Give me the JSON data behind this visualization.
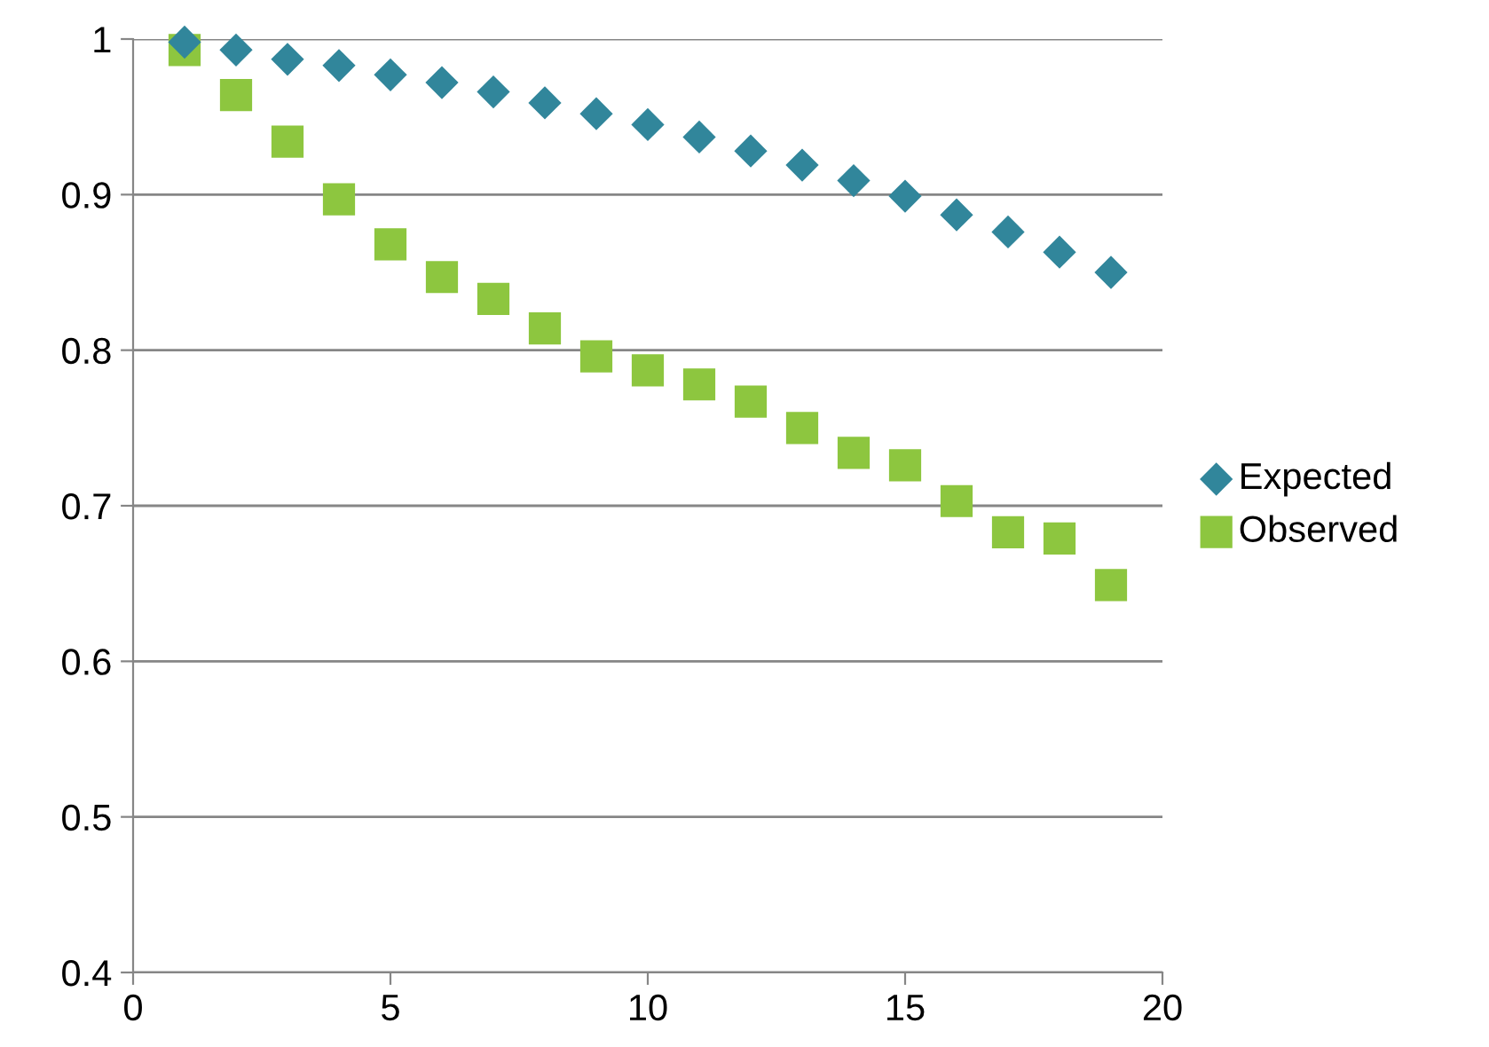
{
  "chart_data": {
    "type": "scatter",
    "x": [
      1,
      2,
      3,
      4,
      5,
      6,
      7,
      8,
      9,
      10,
      11,
      12,
      13,
      14,
      15,
      16,
      17,
      18,
      19
    ],
    "series": [
      {
        "name": "Expected",
        "color": "#31869b",
        "marker": "diamond",
        "values": [
          0.998,
          0.993,
          0.987,
          0.983,
          0.977,
          0.972,
          0.966,
          0.959,
          0.952,
          0.945,
          0.937,
          0.928,
          0.919,
          0.909,
          0.899,
          0.887,
          0.876,
          0.863,
          0.85
        ]
      },
      {
        "name": "Observed",
        "color": "#8dc63f",
        "marker": "square",
        "values": [
          0.993,
          0.964,
          0.934,
          0.897,
          0.868,
          0.847,
          0.833,
          0.814,
          0.796,
          0.787,
          0.778,
          0.767,
          0.75,
          0.734,
          0.726,
          0.703,
          0.683,
          0.679,
          0.649
        ]
      }
    ],
    "xlim": [
      0,
      20
    ],
    "xticks": [
      0,
      5,
      10,
      15,
      20
    ],
    "ylim": [
      0.4,
      1
    ],
    "yticks": [
      0.4,
      0.5,
      0.6,
      0.7,
      0.8,
      0.9,
      1
    ],
    "grid": "y",
    "legend": "right"
  }
}
